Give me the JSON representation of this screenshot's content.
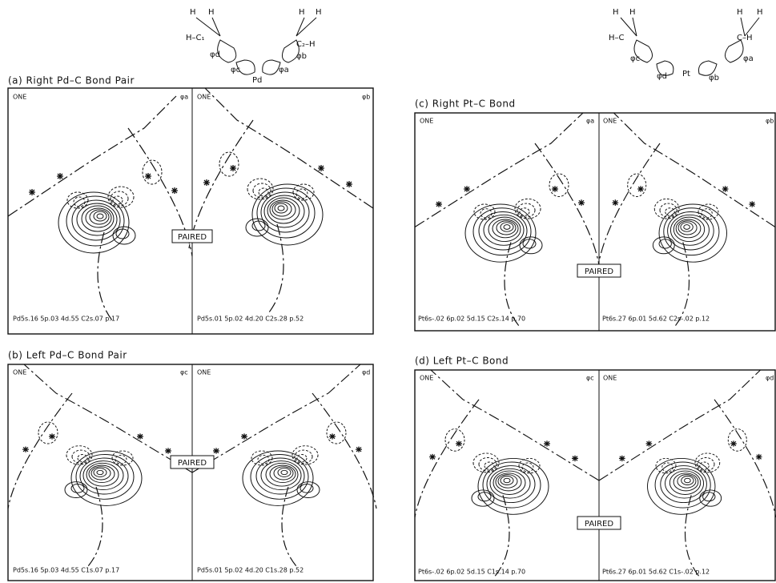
{
  "diagrams": [
    {
      "h1": "H",
      "h2": "H",
      "h3": "H",
      "h4": "H",
      "left": "H–C₁",
      "right": "C₂–H",
      "phi_left_top": "φd",
      "phi_left_bottom": "φc",
      "metal": "Pd",
      "phi_right_bottom": "φa",
      "phi_right_top": "φb"
    },
    {
      "h1": "H",
      "h2": "H",
      "h3": "H",
      "h4": "H",
      "left": "H–C",
      "right": "C–H",
      "phi_left_top": "φc",
      "phi_left_bottom": "φd",
      "metal": "Pt",
      "phi_right_bottom": "φb",
      "phi_right_top": "φa"
    }
  ],
  "panels": [
    {
      "title": "(a) Right Pd–C Bond Pair",
      "paired": "PAIRED",
      "plots": [
        {
          "corner": "ONE",
          "orbital": "φa",
          "formula": "Pd5s.16 5p.03 4d.55 C2s.07 p.17"
        },
        {
          "corner": "ONE",
          "orbital": "φb",
          "formula": "Pd5s.01 5p.02 4d.20 C2s.28 p.52"
        }
      ]
    },
    {
      "title": "(b) Left Pd–C Bond Pair",
      "paired": "PAIRED",
      "plots": [
        {
          "corner": "ONE",
          "orbital": "φc",
          "formula": "Pd5s.16 5p.03 4d.55 C1s.07 p.17"
        },
        {
          "corner": "ONE",
          "orbital": "φd",
          "formula": "Pd5s.01 5p.02 4d.20 C1s.28 p.52"
        }
      ]
    },
    {
      "title": "(c) Right Pt–C Bond",
      "paired": "PAIRED",
      "plots": [
        {
          "corner": "ONE",
          "orbital": "φa",
          "formula": "Pt6s-.02 6p.02 5d.15 C2s.14 p.70"
        },
        {
          "corner": "ONE",
          "orbital": "φb",
          "formula": "Pt6s.27 6p.01 5d.62 C2s-.02 p.12"
        }
      ]
    },
    {
      "title": "(d) Left Pt–C Bond",
      "paired": "PAIRED",
      "plots": [
        {
          "corner": "ONE",
          "orbital": "φc",
          "formula": "Pt6s-.02 6p.02 5d.15 C1s.14 p.70"
        },
        {
          "corner": "ONE",
          "orbital": "φd",
          "formula": "Pt6s.27 6p.01 5d.62 C1s-.02 p.12"
        }
      ]
    }
  ]
}
